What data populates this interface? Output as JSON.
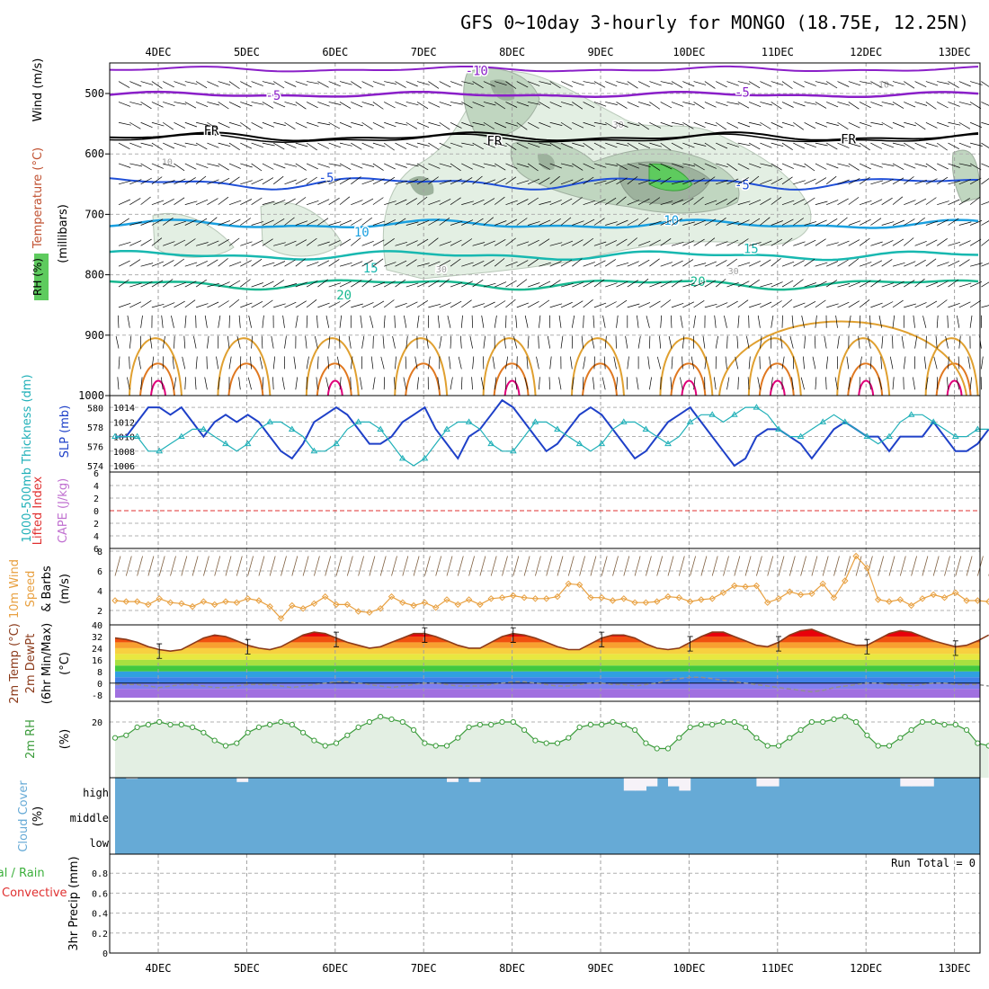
{
  "title": "GFS 0~10day 3-hourly for MONGO (18.75E, 12.25N)",
  "run_total_label": "Run Total = 0",
  "colors": {
    "rh_fill": "#e3efe3",
    "rh_mid": "#c0d6c0",
    "rh_dark": "#9db29d",
    "rh_green": "#5ecb5e",
    "temp_m10": "#8a1fc8",
    "temp_m5_high": "#8a1fc8",
    "fr": "#000000",
    "temp_5": "#1f4fd8",
    "temp_10": "#1aa0e0",
    "temp_15": "#18b8b0",
    "temp_20": "#18b890",
    "wind_low": "#e0a030",
    "wind_mid": "#e07820",
    "wind_high": "#e0007a",
    "slp": "#1e40c8",
    "thickness": "#20b0b8",
    "lifted": "#e03030",
    "cape": "#c070d0",
    "wind10": "#e8a040",
    "barb": "#806040",
    "temp2m": "#8b3a1a",
    "dewpt": "#909090",
    "rh2m": "#3c9c3c",
    "rh2m_fill": "#e3efe3",
    "cloud": "#66aad6",
    "cloud_gap": "#f6f2f8",
    "precip_total": "#3cb03c",
    "precip_conv": "#e03030"
  },
  "chart_data": [
    {
      "panel": "upper_air",
      "type": "heatmap",
      "x_categories": [
        "4DEC",
        "5DEC",
        "6DEC",
        "7DEC",
        "8DEC",
        "9DEC",
        "10DEC",
        "11DEC",
        "12DEC",
        "13DEC"
      ],
      "ylabel": "Wind (m/s)",
      "ylabel2": "Temperature (°C)",
      "ylabel3": "(millibars)",
      "ylabel4": "RH (%)",
      "yticks": [
        500,
        600,
        700,
        800,
        900,
        1000
      ],
      "ylim": [
        1000,
        450
      ],
      "contour_labels": [
        {
          "label": "-10",
          "day": 3.6,
          "p": 462,
          "series": "temp_m10"
        },
        {
          "label": "-5",
          "day": 1.3,
          "p": 503,
          "series": "temp_m5_high"
        },
        {
          "label": "-5",
          "day": 6.6,
          "p": 498,
          "series": "temp_m5_high"
        },
        {
          "label": "FR",
          "day": 0.6,
          "p": 561,
          "series": "fr"
        },
        {
          "label": "FR",
          "day": 3.8,
          "p": 578,
          "series": "fr"
        },
        {
          "label": "FR",
          "day": 7.8,
          "p": 575,
          "series": "fr"
        },
        {
          "label": "-5",
          "day": 1.9,
          "p": 639,
          "series": "temp_5"
        },
        {
          "label": "-5",
          "day": 6.6,
          "p": 651,
          "series": "temp_5"
        },
        {
          "label": "10",
          "day": 2.3,
          "p": 729,
          "series": "temp_10"
        },
        {
          "label": "10",
          "day": 5.8,
          "p": 710,
          "series": "temp_10"
        },
        {
          "label": "15",
          "day": 2.4,
          "p": 789,
          "series": "temp_15"
        },
        {
          "label": "15",
          "day": 6.7,
          "p": 757,
          "series": "temp_15"
        },
        {
          "label": "20",
          "day": 2.1,
          "p": 833,
          "series": "temp_20"
        },
        {
          "label": "20",
          "day": 6.1,
          "p": 811,
          "series": "temp_20"
        },
        {
          "label": "30",
          "day": 5.2,
          "p": 549,
          "series": "rh"
        },
        {
          "label": "30",
          "day": 3.2,
          "p": 789,
          "series": "rh"
        },
        {
          "label": "30",
          "day": 6.5,
          "p": 792,
          "series": "rh"
        },
        {
          "label": "10",
          "day": 0.1,
          "p": 611,
          "series": "rh"
        },
        {
          "label": "10",
          "day": 8.2,
          "p": 483,
          "series": "rh"
        }
      ]
    },
    {
      "panel": "slp_thickness",
      "type": "line",
      "ylabel": "SLP (mb)",
      "ylabel2": "1000-500mb Thickness (dm)",
      "yticks_left": [
        574,
        576,
        578,
        580
      ],
      "yticks_right": [
        1006,
        1008,
        1010,
        1012,
        1014
      ],
      "ylim": [
        1005.5,
        1015
      ],
      "series": [
        {
          "name": "SLP",
          "values": [
            1010,
            1010,
            1012,
            1014,
            1014,
            1013,
            1014,
            1012,
            1010,
            1012,
            1013,
            1012,
            1013,
            1012,
            1010,
            1008,
            1007,
            1009,
            1012,
            1013,
            1014,
            1013,
            1011,
            1009,
            1009,
            1010,
            1012,
            1013,
            1014,
            1011,
            1009,
            1007,
            1010,
            1011,
            1013,
            1015,
            1014,
            1012,
            1010,
            1008,
            1009,
            1011,
            1013,
            1014,
            1013,
            1011,
            1009,
            1007,
            1008,
            1010,
            1012,
            1013,
            1014,
            1012,
            1010,
            1008,
            1006,
            1007,
            1010,
            1011,
            1011,
            1010,
            1009,
            1007,
            1009,
            1011,
            1012,
            1011,
            1010,
            1010,
            1008,
            1010,
            1010,
            1010,
            1012,
            1010,
            1008,
            1008,
            1009,
            1011
          ]
        },
        {
          "name": "Thickness",
          "values": [
            1010,
            1010,
            1010,
            1008,
            1008,
            1009,
            1010,
            1011,
            1011,
            1010,
            1009,
            1008,
            1009,
            1011,
            1012,
            1012,
            1011,
            1010,
            1008,
            1008,
            1009,
            1011,
            1012,
            1012,
            1011,
            1009,
            1007,
            1006,
            1007,
            1009,
            1011,
            1012,
            1012,
            1011,
            1009,
            1008,
            1008,
            1010,
            1012,
            1012,
            1011,
            1010,
            1009,
            1008,
            1009,
            1011,
            1012,
            1012,
            1011,
            1010,
            1009,
            1010,
            1012,
            1013,
            1013,
            1012,
            1013,
            1014,
            1014,
            1013,
            1011,
            1010,
            1010,
            1011,
            1012,
            1013,
            1012,
            1011,
            1010,
            1009,
            1010,
            1012,
            1013,
            1013,
            1012,
            1011,
            1010,
            1010,
            1011,
            1011
          ]
        }
      ]
    },
    {
      "panel": "lifted_cape",
      "type": "line",
      "ylabel": "Lifted Index",
      "ylabel2": "CAPE (J/kg)",
      "yticks": [
        -6,
        -4,
        -2,
        0,
        2,
        4,
        6
      ],
      "ytick_labels": [
        "6",
        "4",
        "2",
        "0",
        "2",
        "4",
        "6"
      ],
      "ylim": [
        -6,
        6
      ],
      "series": [
        {
          "name": "Lifted Index",
          "values": [
            0
          ]
        }
      ]
    },
    {
      "panel": "wind10m",
      "type": "line",
      "ylabel": "10m Wind Speed & Barbs (m/s)",
      "yticks": [
        2,
        4,
        6,
        8
      ],
      "ylim": [
        1,
        8
      ],
      "series": [
        {
          "name": "Speed",
          "values": [
            3,
            2.9,
            2.9,
            2.6,
            3.2,
            2.8,
            2.7,
            2.4,
            2.9,
            2.6,
            2.9,
            2.8,
            3.2,
            3.0,
            2.4,
            1.2,
            2.5,
            2.2,
            2.7,
            3.4,
            2.6,
            2.6,
            1.9,
            1.8,
            2.2,
            3.4,
            2.8,
            2.5,
            2.8,
            2.3,
            3.1,
            2.6,
            3.1,
            2.6,
            3.2,
            3.3,
            3.5,
            3.3,
            3.2,
            3.2,
            3.4,
            4.7,
            4.6,
            3.3,
            3.3,
            3.0,
            3.2,
            2.8,
            2.8,
            2.9,
            3.4,
            3.3,
            2.9,
            3.1,
            3.2,
            3.8,
            4.5,
            4.4,
            4.5,
            2.8,
            3.2,
            3.9,
            3.6,
            3.7,
            4.7,
            3.3,
            5.0,
            7.5,
            6.3,
            3.1,
            2.9,
            3.1,
            2.5,
            3.2,
            3.6,
            3.3,
            3.8,
            3.0,
            3.0,
            2.9
          ]
        }
      ]
    },
    {
      "panel": "temp2m",
      "type": "area",
      "ylabel": "2m Temp (°C)",
      "ylabel2": "2m DewPt (6hr Min/Max)",
      "yticks": [
        -8,
        0,
        8,
        16,
        24,
        32,
        40
      ],
      "ylim": [
        -10,
        40
      ],
      "series": [
        {
          "name": "2m Temp",
          "values": [
            31,
            30,
            28,
            25,
            23,
            22,
            23,
            27,
            31,
            33,
            32,
            29,
            26,
            24,
            23,
            25,
            29,
            33,
            35,
            34,
            31,
            28,
            26,
            24,
            25,
            28,
            31,
            34,
            34,
            32,
            29,
            26,
            24,
            24,
            28,
            32,
            34,
            33,
            31,
            28,
            25,
            23,
            23,
            27,
            31,
            33,
            33,
            31,
            27,
            24,
            23,
            24,
            28,
            32,
            35,
            35,
            32,
            29,
            26,
            25,
            28,
            33,
            36,
            37,
            34,
            31,
            28,
            26,
            26,
            30,
            34,
            36,
            35,
            32,
            29,
            27,
            25,
            26,
            29,
            33
          ]
        },
        {
          "name": "2m DewPt",
          "values": [
            -1,
            -1,
            -1,
            -2,
            -3,
            -2,
            -1,
            -1,
            -2,
            -3,
            -3,
            -2,
            -1,
            -1,
            -1,
            -2,
            -3,
            -2,
            -1,
            0,
            1,
            1,
            0,
            -1,
            -2,
            -3,
            -2,
            -1,
            0,
            0,
            -1,
            -2,
            -2,
            -2,
            -1,
            0,
            1,
            1,
            0,
            -1,
            -2,
            -2,
            -1,
            0,
            0,
            -1,
            -1,
            -2,
            -1,
            0,
            2,
            3,
            4,
            4,
            3,
            2,
            1,
            0,
            -1,
            -2,
            -3,
            -4,
            -5,
            -6,
            -5,
            -3,
            -2,
            -1,
            0,
            0,
            -1,
            -1,
            -2,
            -1,
            0,
            0,
            -1,
            -1,
            -1,
            -2
          ]
        }
      ]
    },
    {
      "panel": "rh2m",
      "type": "area",
      "ylabel": "2m RH (%)",
      "yticks": [
        20
      ],
      "ylim": [
        0,
        30
      ],
      "series": [
        {
          "name": "2m RH",
          "values": [
            14,
            15,
            18,
            19,
            20,
            19,
            19,
            18,
            16,
            13,
            11,
            12,
            16,
            18,
            19,
            20,
            19,
            16,
            13,
            11,
            12,
            15,
            18,
            20,
            22,
            21,
            20,
            17,
            12,
            11,
            11,
            14,
            18,
            19,
            19,
            20,
            20,
            17,
            13,
            12,
            12,
            14,
            18,
            19,
            19,
            20,
            19,
            17,
            12,
            10,
            10,
            14,
            18,
            19,
            19,
            20,
            20,
            18,
            14,
            11,
            11,
            14,
            17,
            20,
            20,
            21,
            22,
            20,
            15,
            11,
            11,
            14,
            17,
            20,
            20,
            19,
            19,
            17,
            12,
            11
          ]
        }
      ]
    },
    {
      "panel": "cloud",
      "type": "bar",
      "ylabel": "Cloud Cover (%)",
      "ytick_labels": [
        "high",
        "middle",
        "low"
      ],
      "series": [
        {
          "name": "high",
          "values": [
            100,
            95,
            100,
            100,
            100,
            100,
            100,
            100,
            100,
            100,
            100,
            80,
            100,
            100,
            100,
            100,
            100,
            100,
            100,
            100,
            100,
            100,
            100,
            100,
            100,
            100,
            100,
            100,
            100,
            100,
            80,
            100,
            80,
            100,
            100,
            100,
            100,
            100,
            100,
            100,
            100,
            100,
            100,
            100,
            100,
            100,
            40,
            40,
            60,
            100,
            60,
            40,
            100,
            100,
            100,
            100,
            100,
            100,
            60,
            60,
            100,
            100,
            100,
            100,
            100,
            100,
            100,
            100,
            100,
            100,
            100,
            60,
            60,
            60,
            100,
            100,
            100,
            100,
            100,
            100
          ]
        }
      ]
    },
    {
      "panel": "precip",
      "type": "bar",
      "ylabel": "3hr Precip (mm)",
      "ylabel_total": "Total / Rain",
      "ylabel_conv": "Convective",
      "yticks": [
        0,
        0.2,
        0.4,
        0.6,
        0.8
      ],
      "ylim": [
        0,
        1
      ],
      "series": [
        {
          "name": "Total / Rain",
          "values": [
            0
          ]
        },
        {
          "name": "Convective",
          "values": [
            0
          ]
        }
      ]
    }
  ]
}
